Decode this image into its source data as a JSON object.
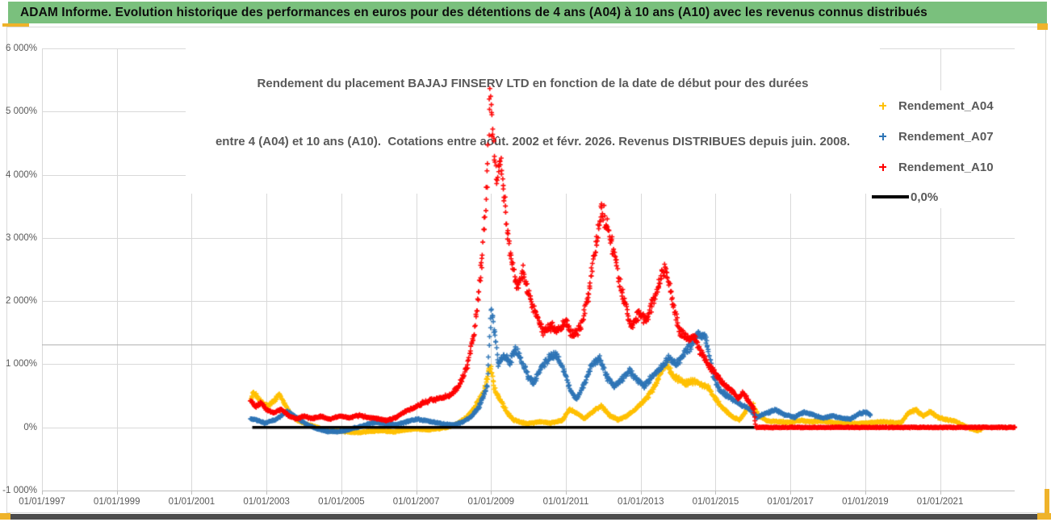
{
  "header": {
    "title": "ADAM Informe. Evolution historique des performances en euros pour des détentions de 4 ans (A04) à 10 ans (A10) avec les revenus connus distribués"
  },
  "colors": {
    "header_bg": "#7ac07d",
    "accent_yellow": "#efb32a",
    "bottom_bar": "#4c4c4c",
    "grid": "#d9d9d9",
    "text": "#595959"
  },
  "chart_data": {
    "type": "scatter",
    "title_lines": [
      "Rendement du placement BAJAJ FINSERV LTD en fonction de la date de début pour des durées",
      "entre 4 (A04) et 10 ans (A10).  Cotations entre août. 2002 et févr. 2026. Revenus DISTRIBUES depuis juin. 2008."
    ],
    "x_axis": {
      "labels": [
        "01/01/1997",
        "01/01/1999",
        "01/01/2001",
        "01/01/2003",
        "01/01/2005",
        "01/01/2007",
        "01/01/2009",
        "01/01/2011",
        "01/01/2013",
        "01/01/2015",
        "01/01/2017",
        "01/01/2019",
        "01/01/2021"
      ],
      "tick_years": [
        1997,
        1999,
        2001,
        2003,
        2005,
        2007,
        2009,
        2011,
        2013,
        2015,
        2017,
        2019,
        2021
      ],
      "range_years": [
        1997,
        2023
      ],
      "grid": true
    },
    "y_axis": {
      "labels": [
        "6 000%",
        "5 000%",
        "4 000%",
        "3 000%",
        "2 000%",
        "1 000%",
        "0%",
        "-1 000%"
      ],
      "tick_pcts": [
        6000,
        5000,
        4000,
        3000,
        2000,
        1000,
        0,
        -1000
      ],
      "range_pct": [
        -1000,
        6000
      ],
      "grid": true
    },
    "legend": [
      {
        "label": "Rendement_A04",
        "color": "#FFC000",
        "marker": "plus"
      },
      {
        "label": "Rendement_A07",
        "color": "#2E75B6",
        "marker": "plus"
      },
      {
        "label": "Rendement_A10",
        "color": "#FF0000",
        "marker": "plus"
      },
      {
        "label": "0,0%",
        "color": "#000000",
        "marker": "line"
      }
    ],
    "zero_line": {
      "y_pct": 0,
      "x_start_year": 2002.62,
      "x_end_year": 2023.0,
      "color": "#000000"
    },
    "series": [
      {
        "name": "Rendement_A04",
        "color": "#FFC000",
        "seed": 11,
        "points": [
          [
            2002.58,
            430
          ],
          [
            2002.65,
            560
          ],
          [
            2002.75,
            480
          ],
          [
            2002.9,
            380
          ],
          [
            2003.05,
            340
          ],
          [
            2003.2,
            420
          ],
          [
            2003.35,
            520
          ],
          [
            2003.5,
            350
          ],
          [
            2003.65,
            200
          ],
          [
            2003.8,
            120
          ],
          [
            2004.0,
            60
          ],
          [
            2004.2,
            30
          ],
          [
            2004.45,
            -20
          ],
          [
            2004.7,
            -50
          ],
          [
            2004.95,
            -60
          ],
          [
            2005.2,
            -70
          ],
          [
            2005.5,
            -80
          ],
          [
            2005.8,
            -60
          ],
          [
            2006.1,
            -50
          ],
          [
            2006.4,
            -70
          ],
          [
            2006.7,
            -40
          ],
          [
            2007.0,
            -20
          ],
          [
            2007.3,
            -40
          ],
          [
            2007.6,
            -20
          ],
          [
            2007.9,
            10
          ],
          [
            2008.1,
            60
          ],
          [
            2008.35,
            160
          ],
          [
            2008.6,
            350
          ],
          [
            2008.8,
            560
          ],
          [
            2008.95,
            900
          ],
          [
            2009.0,
            950
          ],
          [
            2009.1,
            600
          ],
          [
            2009.2,
            480
          ],
          [
            2009.3,
            380
          ],
          [
            2009.45,
            220
          ],
          [
            2009.6,
            120
          ],
          [
            2009.8,
            80
          ],
          [
            2010.0,
            60
          ],
          [
            2010.3,
            90
          ],
          [
            2010.6,
            70
          ],
          [
            2010.9,
            110
          ],
          [
            2011.1,
            280
          ],
          [
            2011.3,
            220
          ],
          [
            2011.5,
            140
          ],
          [
            2011.75,
            260
          ],
          [
            2011.95,
            340
          ],
          [
            2012.15,
            200
          ],
          [
            2012.4,
            120
          ],
          [
            2012.6,
            170
          ],
          [
            2012.8,
            260
          ],
          [
            2013.0,
            360
          ],
          [
            2013.2,
            500
          ],
          [
            2013.4,
            680
          ],
          [
            2013.6,
            950
          ],
          [
            2013.7,
            1000
          ],
          [
            2013.85,
            820
          ],
          [
            2014.0,
            760
          ],
          [
            2014.2,
            700
          ],
          [
            2014.4,
            740
          ],
          [
            2014.6,
            680
          ],
          [
            2014.8,
            640
          ],
          [
            2015.0,
            450
          ],
          [
            2015.2,
            300
          ],
          [
            2015.45,
            160
          ],
          [
            2015.65,
            120
          ],
          [
            2015.85,
            300
          ],
          [
            2016.0,
            350
          ],
          [
            2016.15,
            180
          ],
          [
            2016.4,
            100
          ],
          [
            2016.7,
            90
          ],
          [
            2017.0,
            80
          ],
          [
            2017.3,
            110
          ],
          [
            2017.6,
            90
          ],
          [
            2017.9,
            100
          ],
          [
            2018.2,
            70
          ],
          [
            2018.5,
            60
          ],
          [
            2018.8,
            60
          ],
          [
            2019.1,
            70
          ],
          [
            2019.4,
            90
          ],
          [
            2019.7,
            80
          ],
          [
            2019.95,
            70
          ],
          [
            2020.15,
            220
          ],
          [
            2020.35,
            280
          ],
          [
            2020.55,
            180
          ],
          [
            2020.75,
            250
          ],
          [
            2020.95,
            160
          ],
          [
            2021.15,
            120
          ],
          [
            2021.4,
            100
          ],
          [
            2021.6,
            40
          ],
          [
            2021.8,
            -20
          ],
          [
            2022.0,
            -50
          ],
          [
            2022.1,
            -40
          ]
        ]
      },
      {
        "name": "Rendement_A07",
        "color": "#2E75B6",
        "seed": 22,
        "points": [
          [
            2002.58,
            130
          ],
          [
            2002.75,
            110
          ],
          [
            2002.95,
            70
          ],
          [
            2003.15,
            100
          ],
          [
            2003.35,
            160
          ],
          [
            2003.55,
            260
          ],
          [
            2003.7,
            200
          ],
          [
            2003.9,
            110
          ],
          [
            2004.1,
            40
          ],
          [
            2004.35,
            -20
          ],
          [
            2004.6,
            -60
          ],
          [
            2004.85,
            -70
          ],
          [
            2005.1,
            -50
          ],
          [
            2005.35,
            -10
          ],
          [
            2005.6,
            30
          ],
          [
            2005.9,
            80
          ],
          [
            2006.15,
            60
          ],
          [
            2006.45,
            40
          ],
          [
            2006.75,
            90
          ],
          [
            2007.0,
            130
          ],
          [
            2007.25,
            110
          ],
          [
            2007.5,
            80
          ],
          [
            2007.75,
            50
          ],
          [
            2008.0,
            40
          ],
          [
            2008.25,
            90
          ],
          [
            2008.5,
            180
          ],
          [
            2008.7,
            350
          ],
          [
            2008.9,
            650
          ],
          [
            2009.0,
            1900
          ],
          [
            2009.1,
            1500
          ],
          [
            2009.2,
            1000
          ],
          [
            2009.35,
            1150
          ],
          [
            2009.5,
            1000
          ],
          [
            2009.65,
            1250
          ],
          [
            2009.8,
            1100
          ],
          [
            2010.0,
            800
          ],
          [
            2010.15,
            700
          ],
          [
            2010.35,
            950
          ],
          [
            2010.55,
            1100
          ],
          [
            2010.75,
            1150
          ],
          [
            2010.95,
            900
          ],
          [
            2011.15,
            550
          ],
          [
            2011.3,
            450
          ],
          [
            2011.5,
            700
          ],
          [
            2011.7,
            1000
          ],
          [
            2011.9,
            1100
          ],
          [
            2012.1,
            800
          ],
          [
            2012.3,
            650
          ],
          [
            2012.5,
            750
          ],
          [
            2012.7,
            900
          ],
          [
            2012.9,
            750
          ],
          [
            2013.1,
            650
          ],
          [
            2013.3,
            800
          ],
          [
            2013.55,
            950
          ],
          [
            2013.75,
            1100
          ],
          [
            2013.95,
            1000
          ],
          [
            2014.15,
            1150
          ],
          [
            2014.35,
            1300
          ],
          [
            2014.55,
            1500
          ],
          [
            2014.75,
            1400
          ],
          [
            2014.95,
            800
          ],
          [
            2015.1,
            600
          ],
          [
            2015.3,
            500
          ],
          [
            2015.5,
            420
          ],
          [
            2015.7,
            350
          ],
          [
            2015.9,
            300
          ],
          [
            2016.1,
            160
          ],
          [
            2016.35,
            220
          ],
          [
            2016.6,
            280
          ],
          [
            2016.85,
            200
          ],
          [
            2017.1,
            160
          ],
          [
            2017.35,
            240
          ],
          [
            2017.6,
            200
          ],
          [
            2017.85,
            150
          ],
          [
            2018.1,
            180
          ],
          [
            2018.35,
            150
          ],
          [
            2018.6,
            130
          ],
          [
            2018.85,
            220
          ],
          [
            2019.0,
            240
          ],
          [
            2019.13,
            200
          ]
        ]
      },
      {
        "name": "Rendement_A10",
        "color": "#FF0000",
        "seed": 33,
        "points": [
          [
            2002.58,
            430
          ],
          [
            2002.7,
            330
          ],
          [
            2002.85,
            390
          ],
          [
            2003.0,
            280
          ],
          [
            2003.2,
            230
          ],
          [
            2003.4,
            290
          ],
          [
            2003.6,
            180
          ],
          [
            2003.8,
            140
          ],
          [
            2004.0,
            180
          ],
          [
            2004.2,
            140
          ],
          [
            2004.45,
            170
          ],
          [
            2004.7,
            130
          ],
          [
            2004.95,
            180
          ],
          [
            2005.2,
            150
          ],
          [
            2005.45,
            190
          ],
          [
            2005.7,
            160
          ],
          [
            2005.95,
            140
          ],
          [
            2006.2,
            110
          ],
          [
            2006.45,
            150
          ],
          [
            2006.7,
            250
          ],
          [
            2006.95,
            310
          ],
          [
            2007.2,
            390
          ],
          [
            2007.45,
            440
          ],
          [
            2007.7,
            470
          ],
          [
            2007.95,
            520
          ],
          [
            2008.15,
            650
          ],
          [
            2008.35,
            950
          ],
          [
            2008.55,
            1500
          ],
          [
            2008.75,
            2600
          ],
          [
            2008.9,
            3900
          ],
          [
            2008.97,
            5300
          ],
          [
            2009.05,
            4600
          ],
          [
            2009.15,
            3900
          ],
          [
            2009.25,
            4300
          ],
          [
            2009.4,
            3300
          ],
          [
            2009.55,
            2600
          ],
          [
            2009.7,
            2200
          ],
          [
            2009.85,
            2500
          ],
          [
            2010.0,
            2100
          ],
          [
            2010.2,
            1800
          ],
          [
            2010.4,
            1500
          ],
          [
            2010.6,
            1600
          ],
          [
            2010.8,
            1500
          ],
          [
            2011.0,
            1700
          ],
          [
            2011.2,
            1450
          ],
          [
            2011.4,
            1600
          ],
          [
            2011.6,
            2100
          ],
          [
            2011.8,
            2900
          ],
          [
            2011.95,
            3450
          ],
          [
            2012.1,
            3200
          ],
          [
            2012.3,
            2700
          ],
          [
            2012.5,
            2100
          ],
          [
            2012.75,
            1600
          ],
          [
            2012.95,
            1800
          ],
          [
            2013.15,
            1700
          ],
          [
            2013.35,
            2000
          ],
          [
            2013.55,
            2400
          ],
          [
            2013.67,
            2520
          ],
          [
            2013.85,
            2000
          ],
          [
            2014.05,
            1500
          ],
          [
            2014.25,
            1400
          ],
          [
            2014.45,
            1420
          ],
          [
            2014.6,
            1200
          ],
          [
            2014.8,
            1000
          ],
          [
            2015.0,
            850
          ],
          [
            2015.2,
            700
          ],
          [
            2015.4,
            600
          ],
          [
            2015.6,
            450
          ],
          [
            2015.75,
            550
          ],
          [
            2015.9,
            400
          ],
          [
            2016.02,
            300
          ],
          [
            2016.08,
            0
          ],
          [
            2023.0,
            0
          ]
        ]
      }
    ]
  }
}
